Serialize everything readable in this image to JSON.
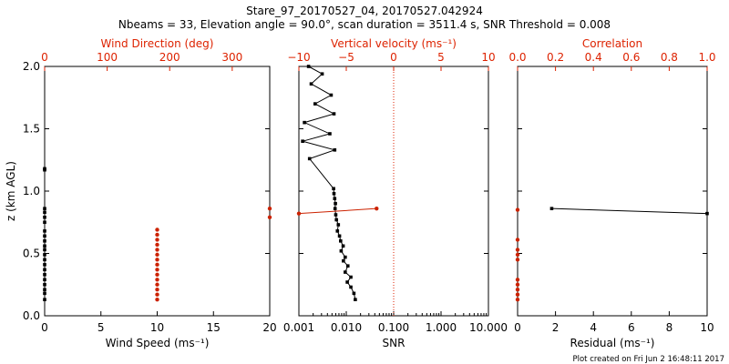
{
  "header": {
    "title": "Stare_97_20170527_04, 20170527.042924",
    "subtitle": "Nbeams = 33, Elevation angle = 90.0°, scan duration = 3511.4 s, SNR Threshold = 0.008"
  },
  "footer": {
    "text": "Plot created on Fri Jun  2 16:48:11 2017"
  },
  "colors": {
    "black": "#000000",
    "red": "#cc2200",
    "axis_red": "#dd2200"
  },
  "chart_data": [
    {
      "id": "wind",
      "type": "scatter",
      "ylabel": "z (km AGL)",
      "ylim": [
        0,
        2
      ],
      "yticks": [
        "0.0",
        "0.5",
        "1.0",
        "1.5",
        "2.0"
      ],
      "bottom_axis": {
        "label": "Wind Speed (ms⁻¹)",
        "range": [
          0,
          20
        ],
        "ticks": [
          0,
          5,
          10,
          15,
          20
        ],
        "tick_labels": [
          "0",
          "5",
          "10",
          "15",
          "20"
        ]
      },
      "top_axis": {
        "label": "Wind Direction (deg)",
        "range": [
          0,
          360
        ],
        "ticks": [
          0,
          100,
          200,
          300
        ],
        "tick_labels": [
          "0",
          "100",
          "200",
          "300"
        ]
      },
      "series": [
        {
          "name": "Wind Speed",
          "color": "black",
          "x": [
            0,
            0,
            0,
            0,
            0,
            0,
            0,
            0,
            0,
            0,
            0,
            0,
            0,
            0,
            0,
            0,
            0,
            0,
            0,
            0,
            0
          ],
          "z": [
            0.13,
            0.18,
            0.21,
            0.25,
            0.29,
            0.33,
            0.37,
            0.41,
            0.45,
            0.49,
            0.53,
            0.56,
            0.6,
            0.64,
            0.68,
            0.75,
            0.79,
            0.83,
            0.86,
            1.17,
            1.18
          ]
        },
        {
          "name": "Wind Direction",
          "color": "red",
          "x": [
            180,
            180,
            180,
            180,
            180,
            180,
            180,
            180,
            180,
            180,
            180,
            180,
            180,
            180,
            180,
            360,
            360
          ],
          "z": [
            0.13,
            0.17,
            0.21,
            0.25,
            0.29,
            0.33,
            0.37,
            0.41,
            0.45,
            0.49,
            0.53,
            0.57,
            0.61,
            0.65,
            0.69,
            0.79,
            0.86
          ]
        }
      ]
    },
    {
      "id": "snr",
      "type": "line",
      "bottom_axis": {
        "label": "SNR",
        "scale": "log",
        "range": [
          0.001,
          10
        ],
        "ticks": [
          0.001,
          0.01,
          0.1,
          1,
          10
        ],
        "tick_labels": [
          "0.001",
          "0.010",
          "0.100",
          "1.000",
          "10.000"
        ]
      },
      "top_axis": {
        "label": "Vertical velocity (ms⁻¹)",
        "range": [
          -10,
          10
        ],
        "ticks": [
          -10,
          -5,
          0,
          5,
          10
        ],
        "tick_labels": [
          "−10",
          "−5",
          "0",
          "5",
          "10"
        ],
        "zero_line": 0
      },
      "series": [
        {
          "name": "SNR",
          "color": "black",
          "x": [
            0.0155,
            0.0145,
            0.0125,
            0.0105,
            0.0125,
            0.0095,
            0.0108,
            0.0087,
            0.0095,
            0.0078,
            0.0086,
            0.0076,
            0.0072,
            0.0065,
            0.0068,
            0.0062,
            0.006,
            0.0058,
            0.0059,
            0.0057,
            0.0055,
            0.0054,
            0.00168,
            0.0057,
            0.0012,
            0.0045,
            0.00131,
            0.0055,
            0.0022,
            0.0048,
            0.00182,
            0.0031,
            0.0016
          ],
          "z": [
            0.13,
            0.18,
            0.23,
            0.27,
            0.31,
            0.35,
            0.4,
            0.44,
            0.47,
            0.52,
            0.56,
            0.6,
            0.64,
            0.68,
            0.73,
            0.77,
            0.81,
            0.86,
            0.9,
            0.94,
            0.98,
            1.02,
            1.26,
            1.33,
            1.4,
            1.46,
            1.55,
            1.62,
            1.7,
            1.77,
            1.86,
            1.94,
            2.0
          ]
        },
        {
          "name": "Vertical velocity",
          "color": "red",
          "x": [
            -10.0,
            -1.8
          ],
          "z": [
            0.82,
            0.86
          ]
        }
      ]
    },
    {
      "id": "residual",
      "type": "scatter",
      "bottom_axis": {
        "label": "Residual (ms⁻¹)",
        "range": [
          0,
          10
        ],
        "ticks": [
          0,
          2,
          4,
          6,
          8,
          10
        ],
        "tick_labels": [
          "0",
          "2",
          "4",
          "6",
          "8",
          "10"
        ]
      },
      "top_axis": {
        "label": "Correlation",
        "range": [
          0,
          1
        ],
        "ticks": [
          0,
          0.2,
          0.4,
          0.6,
          0.8,
          1.0
        ],
        "tick_labels": [
          "0.0",
          "0.2",
          "0.4",
          "0.6",
          "0.8",
          "1.0"
        ]
      },
      "series": [
        {
          "name": "Residual",
          "color": "black",
          "x": [
            1.8,
            10
          ],
          "z": [
            0.86,
            0.82
          ]
        },
        {
          "name": "Correlation",
          "color": "red",
          "x": [
            0,
            0,
            0,
            0,
            0,
            0,
            0,
            0,
            0,
            0
          ],
          "z": [
            0.13,
            0.17,
            0.21,
            0.25,
            0.29,
            0.45,
            0.49,
            0.53,
            0.61,
            0.85
          ]
        }
      ]
    }
  ]
}
